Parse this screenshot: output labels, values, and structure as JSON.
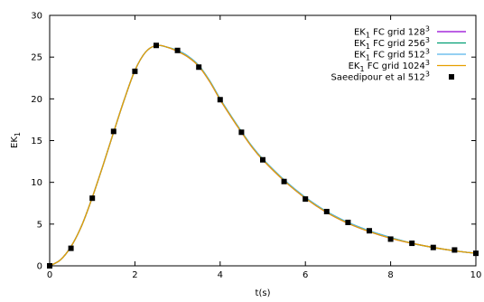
{
  "chart_data": {
    "type": "line",
    "xlabel": "t(s)",
    "ylabel_main": "EK",
    "ylabel_sub": "1",
    "xlim": [
      0,
      10
    ],
    "ylim": [
      0,
      30
    ],
    "xticks": [
      0,
      2,
      4,
      6,
      8,
      10
    ],
    "yticks": [
      0,
      5,
      10,
      15,
      20,
      25,
      30
    ],
    "grid": false,
    "legend_position": "top-right",
    "series": [
      {
        "name_main": "EK",
        "name_sub": "1",
        "name_rest": " FC grid 128",
        "name_sup": "3",
        "color": "#9400d3",
        "x": [
          0,
          0.25,
          0.5,
          0.75,
          1.0,
          1.25,
          1.5,
          1.75,
          2.0,
          2.25,
          2.5,
          2.75,
          3.0,
          3.25,
          3.5,
          3.75,
          4.0,
          4.25,
          4.5,
          4.75,
          5.0,
          5.5,
          6.0,
          6.5,
          7.0,
          7.5,
          8.0,
          8.5,
          9.0,
          9.5,
          10.0
        ],
        "y": [
          0,
          0.7,
          2.3,
          4.8,
          8.2,
          12.0,
          16.0,
          19.9,
          23.4,
          25.6,
          26.4,
          26.2,
          25.7,
          25.0,
          23.9,
          22.1,
          19.9,
          17.9,
          16.0,
          14.2,
          12.7,
          10.2,
          8.1,
          6.4,
          5.1,
          4.1,
          3.3,
          2.7,
          2.2,
          1.8,
          1.5
        ]
      },
      {
        "name_main": "EK",
        "name_sub": "1",
        "name_rest": " FC grid 256",
        "name_sup": "3",
        "color": "#009e73",
        "x": [
          0,
          0.25,
          0.5,
          0.75,
          1.0,
          1.25,
          1.5,
          1.75,
          2.0,
          2.25,
          2.5,
          2.75,
          3.0,
          3.25,
          3.5,
          3.75,
          4.0,
          4.25,
          4.5,
          4.75,
          5.0,
          5.5,
          6.0,
          6.5,
          7.0,
          7.5,
          8.0,
          8.5,
          9.0,
          9.5,
          10.0
        ],
        "y": [
          0,
          0.7,
          2.3,
          4.8,
          8.2,
          12.0,
          16.0,
          19.9,
          23.4,
          25.6,
          26.4,
          26.2,
          25.8,
          25.1,
          24.0,
          22.2,
          20.0,
          18.0,
          16.1,
          14.3,
          12.8,
          10.3,
          8.2,
          6.5,
          5.2,
          4.2,
          3.4,
          2.7,
          2.2,
          1.8,
          1.5
        ]
      },
      {
        "name_main": "EK",
        "name_sub": "1",
        "name_rest": " FC grid 512",
        "name_sup": "3",
        "color": "#56b4e9",
        "x": [
          0,
          0.25,
          0.5,
          0.75,
          1.0,
          1.25,
          1.5,
          1.75,
          2.0,
          2.25,
          2.5,
          2.75,
          3.0,
          3.25,
          3.5,
          3.75,
          4.0,
          4.25,
          4.5,
          4.75,
          5.0,
          5.5,
          6.0,
          6.5,
          7.0,
          7.5,
          8.0,
          8.5,
          9.0,
          9.5,
          10.0
        ],
        "y": [
          0,
          0.7,
          2.3,
          4.8,
          8.2,
          12.0,
          16.0,
          19.9,
          23.4,
          25.6,
          26.4,
          26.2,
          25.8,
          25.1,
          24.0,
          22.2,
          20.0,
          18.0,
          16.1,
          14.3,
          12.8,
          10.3,
          8.2,
          6.5,
          5.2,
          4.2,
          3.4,
          2.7,
          2.2,
          1.8,
          1.5
        ]
      },
      {
        "name_main": "EK",
        "name_sub": "1",
        "name_rest": " FC grid 1024",
        "name_sup": "3",
        "color": "#e69f00",
        "x": [
          0,
          0.25,
          0.5,
          0.75,
          1.0,
          1.25,
          1.5,
          1.75,
          2.0,
          2.25,
          2.5,
          2.75,
          3.0,
          3.25,
          3.5,
          3.75,
          4.0,
          4.25,
          4.5,
          4.75,
          5.0,
          5.5,
          6.0,
          6.5,
          7.0,
          7.5,
          8.0,
          8.5,
          9.0,
          9.5,
          10.0
        ],
        "y": [
          0,
          0.7,
          2.3,
          4.8,
          8.2,
          12.0,
          16.0,
          19.9,
          23.4,
          25.6,
          26.4,
          26.2,
          25.7,
          25.0,
          23.9,
          22.1,
          19.9,
          17.9,
          16.0,
          14.2,
          12.7,
          10.2,
          8.1,
          6.4,
          5.1,
          4.1,
          3.3,
          2.7,
          2.2,
          1.8,
          1.5
        ]
      }
    ],
    "scatter": {
      "name_main": "Saeedipour et al 512",
      "name_sup": "3",
      "color": "#000000",
      "x": [
        0,
        0.5,
        1.0,
        1.5,
        2.0,
        2.5,
        3.0,
        3.5,
        4.0,
        4.5,
        5.0,
        5.5,
        6.0,
        6.5,
        7.0,
        7.5,
        8.0,
        8.5,
        9.0,
        9.5,
        10.0
      ],
      "y": [
        0.0,
        2.1,
        8.1,
        16.1,
        23.3,
        26.4,
        25.8,
        23.8,
        19.9,
        16.0,
        12.7,
        10.1,
        8.0,
        6.5,
        5.2,
        4.2,
        3.2,
        2.7,
        2.2,
        1.9,
        1.5
      ]
    }
  }
}
